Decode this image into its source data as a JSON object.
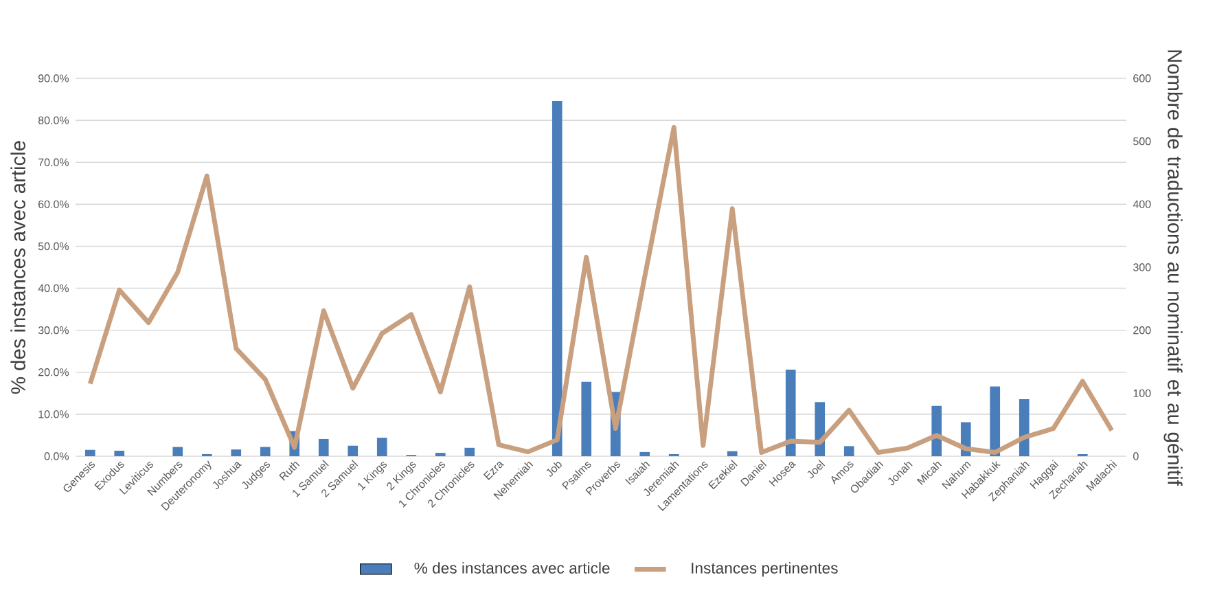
{
  "chart_data": {
    "type": "bar",
    "categories": [
      "Genesis",
      "Exodus",
      "Leviticus",
      "Numbers",
      "Deuteronomy",
      "Joshua",
      "Judges",
      "Ruth",
      "1 Samuel",
      "2 Samuel",
      "1 Kings",
      "2 Kings",
      "1 Chronicles",
      "2 Chronicles",
      "Ezra",
      "Nehemiah",
      "Job",
      "Psalms",
      "Proverbs",
      "Isaiah",
      "Jeremiah",
      "Lamentations",
      "Ezekiel",
      "Daniel",
      "Hosea",
      "Joel",
      "Amos",
      "Obadiah",
      "Jonah",
      "Micah",
      "Nahum",
      "Habakkuk",
      "Zephaniah",
      "Haggai",
      "Zechariah",
      "Malachi"
    ],
    "ylabel": "% des instances avec article",
    "y2label": "Nombre de traductions au nominatif et au génitif",
    "ylim": [
      0,
      90
    ],
    "yticks": [
      {
        "value": 0,
        "label": "0.0%"
      },
      {
        "value": 10,
        "label": "10.0%"
      },
      {
        "value": 20,
        "label": "20.0%"
      },
      {
        "value": 30,
        "label": "30.0%"
      },
      {
        "value": 40,
        "label": "40.0%"
      },
      {
        "value": 50,
        "label": "50.0%"
      },
      {
        "value": 60,
        "label": "60.0%"
      },
      {
        "value": 70,
        "label": "70.0%"
      },
      {
        "value": 80,
        "label": "80.0%"
      },
      {
        "value": 90,
        "label": "90.0%"
      }
    ],
    "y2lim": [
      0,
      600
    ],
    "y2ticks": [
      0,
      100,
      200,
      300,
      400,
      500,
      600
    ],
    "grid": "y",
    "legend": "bottom",
    "series": [
      {
        "name": "% des instances avec article",
        "color": "#4a7ebb",
        "values": [
          1.5,
          1.3,
          0,
          2.2,
          0.5,
          1.6,
          2.2,
          6.0,
          4.1,
          2.5,
          4.4,
          0.3,
          0.8,
          2.0,
          0,
          0,
          84.6,
          17.7,
          15.3,
          1.0,
          0.5,
          0,
          1.2,
          0,
          20.6,
          12.9,
          2.4,
          0,
          0,
          12.0,
          8.1,
          16.6,
          13.6,
          0,
          0.5,
          0
        ]
      },
      {
        "name": "Instances pertinentes",
        "type": "line",
        "axis": "y2",
        "color": "#c9a07f",
        "values": [
          115,
          264,
          212,
          292,
          445,
          171,
          122,
          14,
          231,
          108,
          195,
          225,
          102,
          269,
          18,
          7,
          26,
          316,
          44,
          285,
          522,
          17,
          393,
          6,
          24,
          22,
          73,
          6,
          13,
          33,
          12,
          6,
          30,
          44,
          119,
          41
        ]
      }
    ]
  }
}
